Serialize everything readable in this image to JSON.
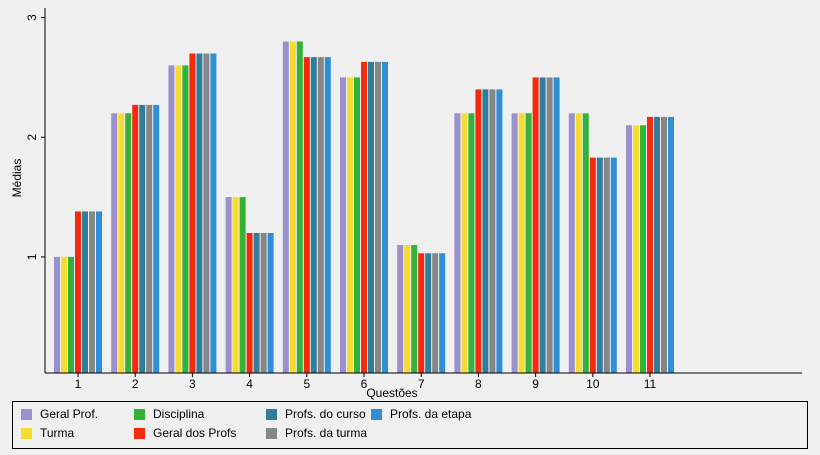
{
  "chart_data": {
    "type": "bar",
    "xlabel": "Questões",
    "ylabel": "Médias",
    "categories": [
      "1",
      "2",
      "3",
      "4",
      "5",
      "6",
      "7",
      "8",
      "9",
      "10",
      "11"
    ],
    "ylim": [
      0.03,
      3.08
    ],
    "yticks": [
      1,
      2,
      3
    ],
    "grid": false,
    "legend_position": "bottom",
    "series": [
      {
        "name": "Geral Prof.",
        "color": "#9b8fcc",
        "values": [
          1.0,
          2.2,
          2.6,
          1.5,
          2.8,
          2.5,
          1.1,
          2.2,
          2.2,
          2.2,
          2.1
        ]
      },
      {
        "name": "Turma",
        "color": "#f7dc2f",
        "values": [
          1.0,
          2.2,
          2.6,
          1.5,
          2.8,
          2.5,
          1.1,
          2.2,
          2.2,
          2.2,
          2.1
        ]
      },
      {
        "name": "Disciplina",
        "color": "#33b23a",
        "values": [
          1.0,
          2.2,
          2.6,
          1.5,
          2.8,
          2.5,
          1.1,
          2.2,
          2.2,
          2.2,
          2.1
        ]
      },
      {
        "name": "Geral dos Profs",
        "color": "#f52a0c",
        "values": [
          1.38,
          2.27,
          2.7,
          1.2,
          2.67,
          2.63,
          1.03,
          2.4,
          2.5,
          1.83,
          2.17
        ]
      },
      {
        "name": "Profs. do curso",
        "color": "#2f7e9c",
        "values": [
          1.38,
          2.27,
          2.7,
          1.2,
          2.67,
          2.63,
          1.03,
          2.4,
          2.5,
          1.83,
          2.17
        ]
      },
      {
        "name": "Profs. da turma",
        "color": "#868686",
        "values": [
          1.38,
          2.27,
          2.7,
          1.2,
          2.67,
          2.63,
          1.03,
          2.4,
          2.5,
          1.83,
          2.17
        ]
      },
      {
        "name": "Profs. da etapa",
        "color": "#2f8fd6",
        "values": [
          1.38,
          2.27,
          2.7,
          1.2,
          2.67,
          2.63,
          1.03,
          2.4,
          2.5,
          1.83,
          2.17
        ]
      }
    ]
  }
}
